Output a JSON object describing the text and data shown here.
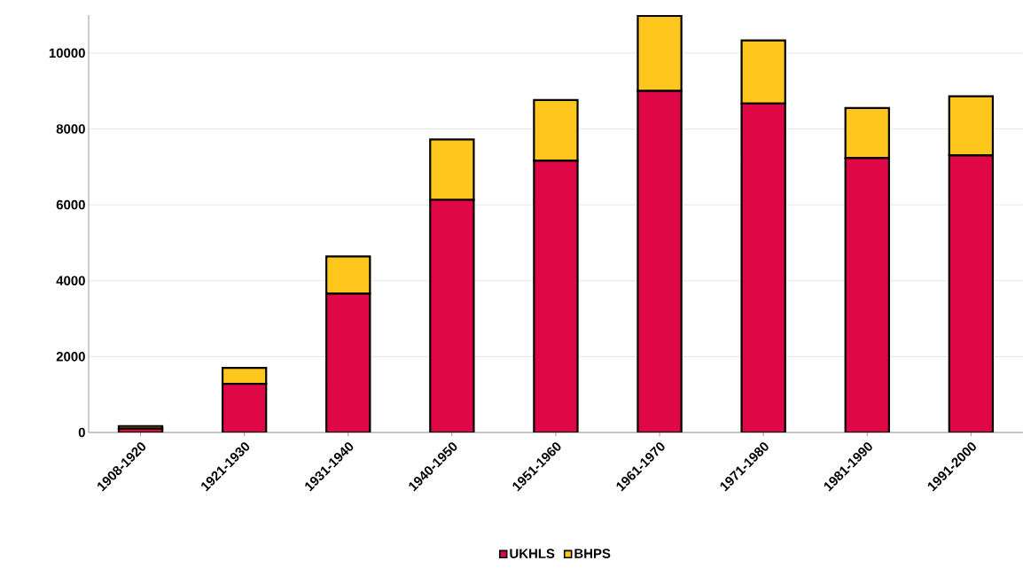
{
  "chart_data": {
    "type": "bar",
    "stacked": true,
    "categories": [
      "1908-1920",
      "1921-1930",
      "1931-1940",
      "1940-1950",
      "1951-1960",
      "1961-1970",
      "1971-1980",
      "1981-1990",
      "1991-2000"
    ],
    "series": [
      {
        "name": "UKHLS",
        "color": "#e00747",
        "values": [
          100,
          1280,
          3660,
          6130,
          7160,
          9000,
          8670,
          7230,
          7300
        ]
      },
      {
        "name": "BHPS",
        "color": "#ffc71e",
        "values": [
          70,
          420,
          980,
          1590,
          1600,
          1980,
          1660,
          1320,
          1560
        ]
      }
    ],
    "ylim": [
      0,
      11000
    ],
    "yticks": [
      0,
      2000,
      4000,
      6000,
      8000,
      10000
    ],
    "grid": "y",
    "legend": "bottom"
  }
}
